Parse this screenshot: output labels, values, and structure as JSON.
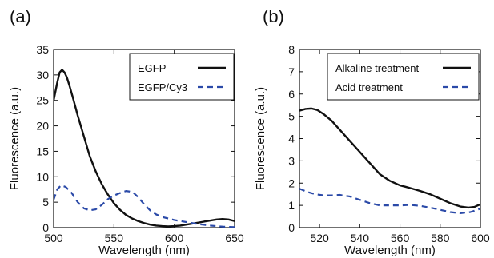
{
  "chart_data": [
    {
      "type": "line",
      "panel_label": "(a)",
      "xlabel": "Wavelength (nm)",
      "ylabel": "Fluorescence (a.u.)",
      "xlim": [
        500,
        650
      ],
      "ylim": [
        0,
        35
      ],
      "xticks": [
        500,
        550,
        600,
        650
      ],
      "yticks": [
        0,
        5,
        10,
        15,
        20,
        25,
        30,
        35
      ],
      "grid": false,
      "legend_position": "top-right",
      "series": [
        {
          "name": "EGFP",
          "style": "solid",
          "color": "#111111",
          "x": [
            500,
            503,
            505,
            507,
            509,
            511,
            513,
            516,
            520,
            525,
            530,
            535,
            540,
            545,
            550,
            555,
            560,
            565,
            570,
            575,
            580,
            585,
            590,
            595,
            600,
            605,
            610,
            615,
            620,
            625,
            630,
            635,
            640,
            645,
            650
          ],
          "y": [
            25,
            28.5,
            30.5,
            31,
            30.5,
            29.5,
            28,
            25.5,
            22,
            18,
            14,
            11,
            8.5,
            6.5,
            4.8,
            3.5,
            2.5,
            1.8,
            1.3,
            0.9,
            0.6,
            0.4,
            0.3,
            0.25,
            0.3,
            0.4,
            0.6,
            0.8,
            1.0,
            1.2,
            1.4,
            1.6,
            1.7,
            1.6,
            1.3
          ]
        },
        {
          "name": "EGFP/Cy3",
          "style": "dashed",
          "color": "#2b4aa8",
          "x": [
            500,
            503,
            506,
            510,
            515,
            520,
            525,
            530,
            535,
            540,
            545,
            550,
            555,
            560,
            563,
            566,
            570,
            575,
            580,
            585,
            590,
            595,
            600,
            610,
            620,
            630,
            640,
            650
          ],
          "y": [
            5.5,
            7.5,
            8.3,
            8.0,
            6.8,
            5.0,
            3.8,
            3.4,
            3.6,
            4.5,
            5.6,
            6.3,
            6.8,
            7.2,
            7.1,
            6.9,
            6.0,
            4.6,
            3.4,
            2.6,
            2.1,
            1.8,
            1.5,
            1.1,
            0.7,
            0.4,
            0.2,
            0.1
          ]
        }
      ]
    },
    {
      "type": "line",
      "panel_label": "(b)",
      "xlabel": "Wavelength (nm)",
      "ylabel": "Fluorescence (a.u.)",
      "xlim": [
        510,
        600
      ],
      "ylim": [
        0,
        8
      ],
      "xticks": [
        520,
        540,
        560,
        580,
        600
      ],
      "yticks": [
        0,
        1,
        2,
        3,
        4,
        5,
        6,
        7,
        8
      ],
      "grid": false,
      "legend_position": "top-right",
      "series": [
        {
          "name": "Alkaline treatment",
          "style": "solid",
          "color": "#111111",
          "x": [
            510,
            513,
            516,
            519,
            522,
            526,
            530,
            535,
            540,
            545,
            550,
            555,
            560,
            565,
            570,
            575,
            580,
            585,
            590,
            594,
            597,
            600
          ],
          "y": [
            5.25,
            5.33,
            5.35,
            5.28,
            5.1,
            4.8,
            4.4,
            3.9,
            3.4,
            2.9,
            2.4,
            2.1,
            1.9,
            1.78,
            1.65,
            1.5,
            1.3,
            1.1,
            0.95,
            0.9,
            0.93,
            1.05
          ]
        },
        {
          "name": "Acid treatment",
          "style": "dashed",
          "color": "#2b4aa8",
          "x": [
            510,
            514,
            518,
            522,
            526,
            530,
            535,
            540,
            545,
            550,
            555,
            560,
            565,
            570,
            575,
            580,
            585,
            590,
            595,
            600
          ],
          "y": [
            1.75,
            1.6,
            1.5,
            1.45,
            1.45,
            1.47,
            1.4,
            1.25,
            1.1,
            1.0,
            1.0,
            1.0,
            1.02,
            0.98,
            0.9,
            0.8,
            0.7,
            0.65,
            0.7,
            0.85
          ]
        }
      ]
    }
  ]
}
